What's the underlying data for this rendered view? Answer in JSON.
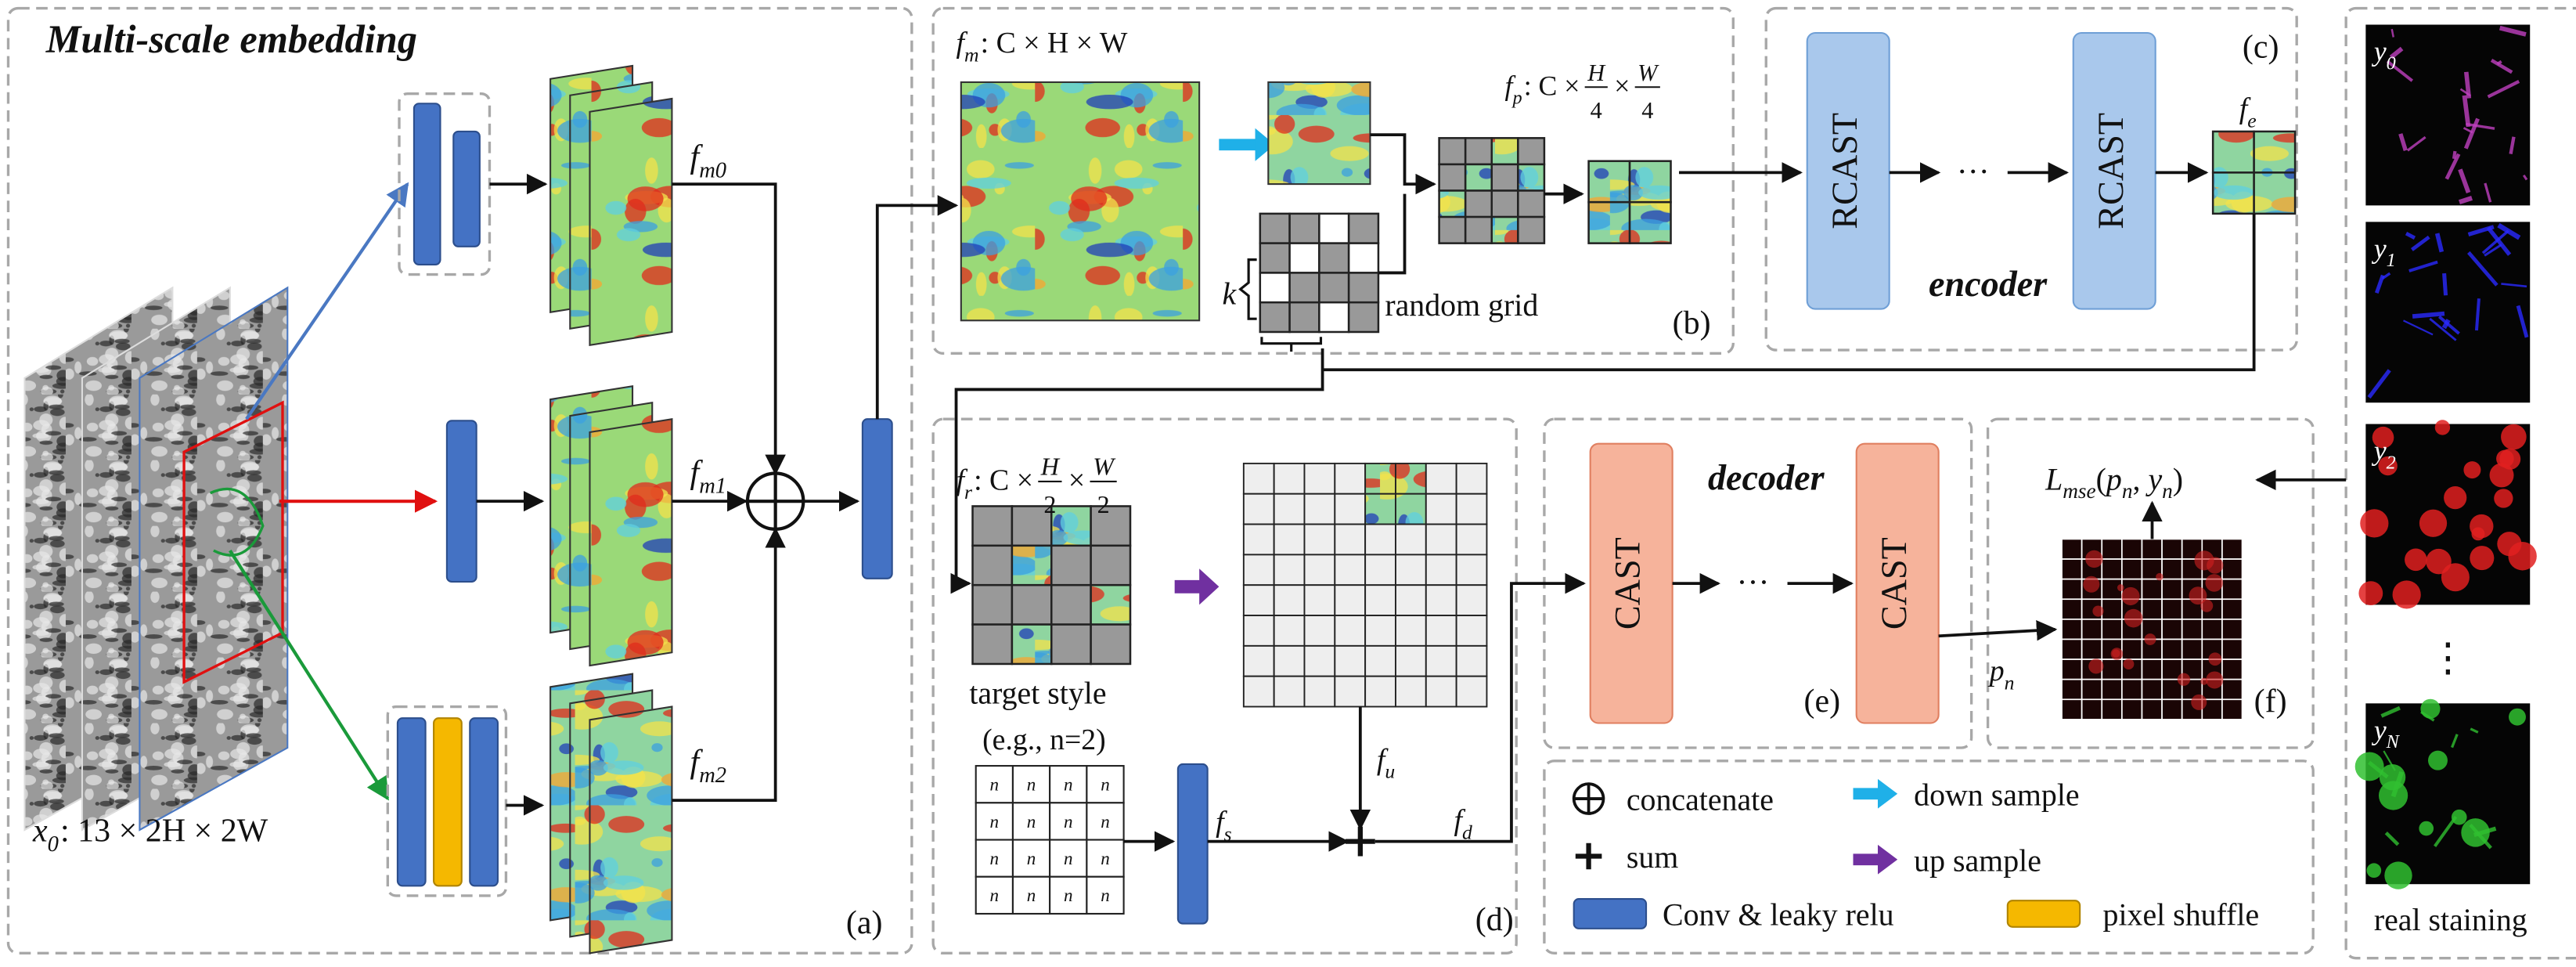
{
  "embedding": {
    "title": "Multi-scale embedding",
    "label": "(a)",
    "input": {
      "base": "x",
      "sub": "0",
      "rest": ": 13 × 2H × 2W"
    },
    "features": [
      {
        "base": "f",
        "sub": "m0"
      },
      {
        "base": "f",
        "sub": "m1"
      },
      {
        "base": "f",
        "sub": "m2"
      }
    ]
  },
  "grid_stage": {
    "label": "(b)",
    "fm": {
      "base": "f",
      "sub": "m",
      "rest": ": C × H × W"
    },
    "fp": {
      "base": "f",
      "sub": "p",
      "rest": ": C ×",
      "frac1": [
        "H",
        "4"
      ],
      "mid": "×",
      "frac2": [
        "W",
        "4"
      ]
    },
    "k": "k",
    "random_grid": "random grid"
  },
  "encoder": {
    "label": "(c)",
    "title": "encoder",
    "blocks": [
      "RCAST",
      "RCAST"
    ],
    "ellipsis": "···",
    "output": {
      "base": "f",
      "sub": "e"
    }
  },
  "style": {
    "label": "(d)",
    "fr": {
      "base": "f",
      "sub": "r",
      "rest": ": C ×",
      "frac1": [
        "H",
        "2"
      ],
      "mid": "×",
      "frac2": [
        "W",
        "2"
      ]
    },
    "target_style": "target style",
    "example": "(e.g., n=2)",
    "cell_symbol": "n",
    "fs": {
      "base": "f",
      "sub": "s"
    },
    "fu": {
      "base": "f",
      "sub": "u"
    },
    "fd": {
      "base": "f",
      "sub": "d"
    }
  },
  "decoder": {
    "label": "(e)",
    "title": "decoder",
    "blocks": [
      "CAST",
      "CAST"
    ],
    "ellipsis": "···",
    "output": {
      "base": "p",
      "sub": "n"
    }
  },
  "loss": {
    "label": "(f)",
    "name": {
      "base": "L",
      "sub": "mse"
    },
    "open": "(",
    "args": [
      {
        "base": "p",
        "sub": "n"
      },
      {
        "base": "y",
        "sub": "n"
      }
    ],
    "sep": ", ",
    "close": ")"
  },
  "legend": {
    "concatenate": "concatenate",
    "sum": "sum",
    "conv": "Conv & leaky relu",
    "down": "down sample",
    "up": "up sample",
    "shuffle": "pixel shuffle"
  },
  "staining": {
    "samples": [
      {
        "base": "y",
        "sub": "0"
      },
      {
        "base": "y",
        "sub": "1"
      },
      {
        "base": "y",
        "sub": "2"
      },
      {
        "base": "y",
        "sub": "N"
      }
    ],
    "ellipsis": "⋮",
    "caption": "real staining"
  }
}
